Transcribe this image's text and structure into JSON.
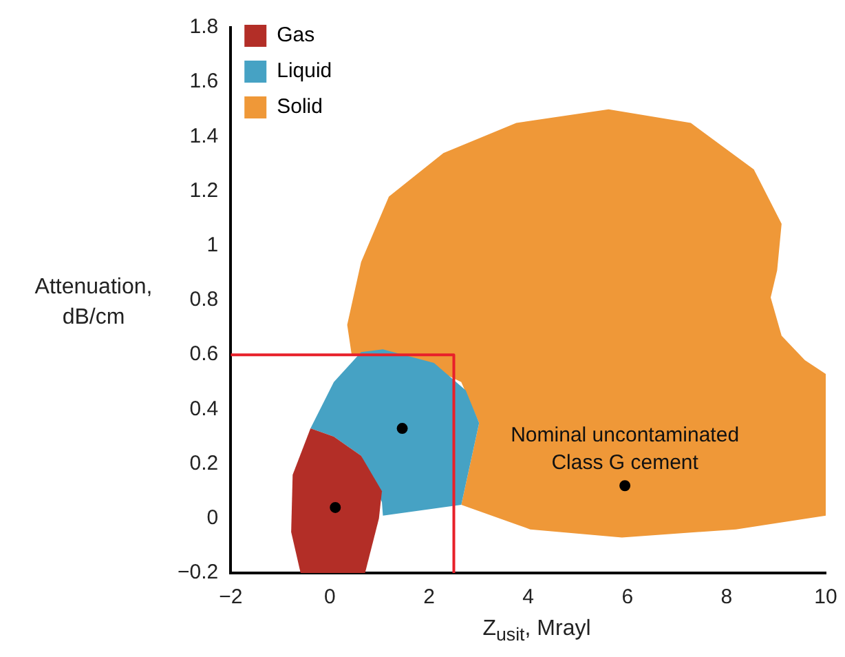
{
  "chart_data": {
    "type": "area",
    "xlabel": "Z$_{usit}$, Mrayl",
    "ylabel": "Attenuation, dB/cm",
    "xlim": [
      -2,
      10
    ],
    "xticks": [
      -2,
      0,
      2,
      4,
      6,
      8,
      10
    ],
    "ylim": [
      -0.2,
      1.8
    ],
    "yticks": [
      -0.2,
      0,
      0.2,
      0.4,
      0.6,
      0.8,
      1,
      1.2,
      1.4,
      1.6,
      1.8
    ],
    "grid": false,
    "legend": "top left",
    "series": [
      {
        "name": "Gas",
        "color": "#b32e27",
        "x": [
          -0.39,
          0.08,
          0.63,
          1.05,
          0.99,
          0.71,
          -0.59,
          -0.78,
          -0.75
        ],
        "values": [
          0.33,
          0.3,
          0.23,
          0.1,
          0,
          -0.2,
          -0.2,
          -0.05,
          0.16
        ]
      },
      {
        "name": "Liquid",
        "color": "#46a2c4",
        "x": [
          -0.39,
          0.08,
          0.63,
          1.07,
          2.1,
          2.74,
          3.01,
          2.65,
          1.07,
          1.05,
          0.63,
          0.08
        ],
        "values": [
          0.33,
          0.5,
          0.61,
          0.62,
          0.57,
          0.47,
          0.35,
          0.05,
          0.01,
          0.06,
          0.23,
          0.3
        ]
      },
      {
        "name": "Solid",
        "color": "#ef9838",
        "x": [
          0.35,
          0.63,
          1.19,
          2.29,
          3.76,
          5.62,
          7.28,
          8.55,
          9.11,
          9.02,
          8.89,
          9.11,
          9.58,
          10,
          10,
          8.19,
          5.89,
          4.04,
          2.65,
          3.01,
          2.65,
          1.74,
          0.44
        ],
        "values": [
          0.71,
          0.94,
          1.18,
          1.34,
          1.45,
          1.5,
          1.45,
          1.28,
          1.08,
          0.91,
          0.81,
          0.67,
          0.58,
          0.53,
          0.01,
          -0.04,
          -0.07,
          -0.04,
          0.05,
          0.35,
          0.5,
          0.58,
          0.6
        ]
      },
      {
        "type": "line",
        "color": "#e8202a",
        "x": [
          -2,
          2.5,
          2.5
        ],
        "values": [
          0.6,
          0.6,
          -0.2
        ]
      },
      {
        "type": "scatter",
        "color": "#000000",
        "marker": "circle",
        "x": [
          0.11,
          1.46,
          5.95
        ],
        "values": [
          0.04,
          0.33,
          0.12
        ]
      }
    ],
    "annotations": [
      {
        "text": "Nominal uncontaminated Class G cement",
        "x": 5.95,
        "y": 0.12
      }
    ]
  }
}
